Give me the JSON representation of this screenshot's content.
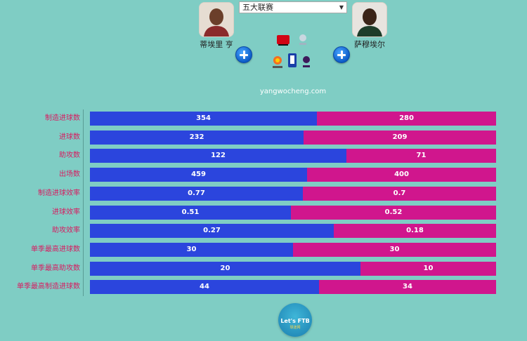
{
  "left_player": {
    "name": "蒂埃里 亨"
  },
  "right_player": {
    "name": "萨穆埃尔"
  },
  "league_select": {
    "value": "五大联赛"
  },
  "site": {
    "url": "yangwocheng.com"
  },
  "footer": {
    "title": "Let's FTB",
    "subtitle": "球迷网"
  },
  "colors": {
    "left_bar": "#2b45dd",
    "right_bar": "#d0168d",
    "label": "#d81b60",
    "background": "#7fcdc4"
  },
  "chart_data": {
    "type": "bar",
    "categories": [
      "制造进球数",
      "进球数",
      "助攻数",
      "出场数",
      "制造进球效率",
      "进球效率",
      "助攻效率",
      "单季最高进球数",
      "单季最高助攻数",
      "单季最高制造进球数"
    ],
    "series": [
      {
        "name": "蒂埃里 亨",
        "values": [
          354,
          232,
          122,
          459,
          0.77,
          0.51,
          0.27,
          30,
          20,
          44
        ]
      },
      {
        "name": "萨穆埃尔",
        "values": [
          280,
          209,
          71,
          400,
          0.7,
          0.52,
          0.18,
          30,
          10,
          34
        ]
      }
    ]
  }
}
